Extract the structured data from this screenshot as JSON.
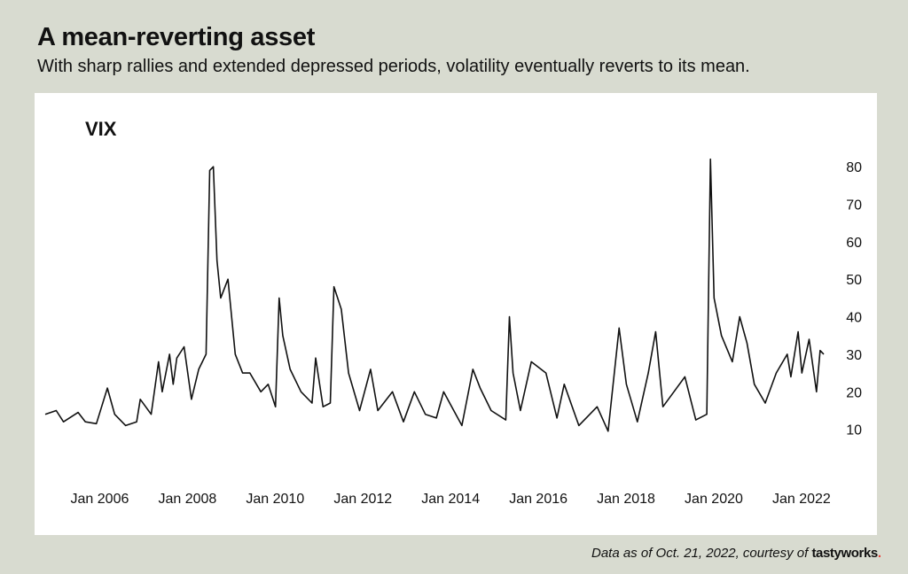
{
  "header": {
    "title": "A mean-reverting asset",
    "subtitle": "With sharp rallies and extended depressed periods, volatility eventually reverts to its mean."
  },
  "footer": {
    "prefix": "Data as of Oct. 21, 2022, courtesy of ",
    "brand_bold": "tastyworks",
    "brand_dot": "."
  },
  "colors": {
    "background": "#d8dbd0",
    "panel": "#ffffff",
    "line": "#111111",
    "brand_dot": "#e8433c"
  },
  "chart_data": {
    "type": "line",
    "title": "VIX",
    "xlabel": "",
    "ylabel": "",
    "y_axis_side": "right",
    "grid": false,
    "ylim": [
      0,
      85
    ],
    "xlim": [
      "2005-01",
      "2022-10"
    ],
    "yticks": [
      10,
      20,
      30,
      40,
      50,
      60,
      70,
      80
    ],
    "xticks": [
      {
        "x": "2006-01",
        "label": "Jan 2006"
      },
      {
        "x": "2008-01",
        "label": "Jan 2008"
      },
      {
        "x": "2010-01",
        "label": "Jan 2010"
      },
      {
        "x": "2012-01",
        "label": "Jan 2012"
      },
      {
        "x": "2014-01",
        "label": "Jan 2014"
      },
      {
        "x": "2016-01",
        "label": "Jan 2016"
      },
      {
        "x": "2018-01",
        "label": "Jan 2018"
      },
      {
        "x": "2020-01",
        "label": "Jan 2020"
      },
      {
        "x": "2022-01",
        "label": "Jan 2022"
      }
    ],
    "series": [
      {
        "points": [
          [
            "2005-01",
            14.0
          ],
          [
            "2005-04",
            15.0
          ],
          [
            "2005-06",
            12.0
          ],
          [
            "2005-10",
            14.5
          ],
          [
            "2005-12",
            12.0
          ],
          [
            "2006-03",
            11.5
          ],
          [
            "2006-06",
            21.0
          ],
          [
            "2006-08",
            14.0
          ],
          [
            "2006-11",
            11.0
          ],
          [
            "2007-02",
            12.0
          ],
          [
            "2007-03",
            18.0
          ],
          [
            "2007-06",
            14.0
          ],
          [
            "2007-08",
            28.0
          ],
          [
            "2007-09",
            20.0
          ],
          [
            "2007-11",
            30.0
          ],
          [
            "2007-12",
            22.0
          ],
          [
            "2008-01",
            29.0
          ],
          [
            "2008-03",
            32.0
          ],
          [
            "2008-05",
            18.0
          ],
          [
            "2008-07",
            26.0
          ],
          [
            "2008-09",
            30.0
          ],
          [
            "2008-10",
            79.0
          ],
          [
            "2008-11",
            80.0
          ],
          [
            "2008-12",
            55.0
          ],
          [
            "2009-01",
            45.0
          ],
          [
            "2009-03",
            50.0
          ],
          [
            "2009-05",
            30.0
          ],
          [
            "2009-07",
            25.0
          ],
          [
            "2009-09",
            25.0
          ],
          [
            "2009-12",
            20.0
          ],
          [
            "2010-02",
            22.0
          ],
          [
            "2010-04",
            16.0
          ],
          [
            "2010-05",
            45.0
          ],
          [
            "2010-06",
            35.0
          ],
          [
            "2010-08",
            26.0
          ],
          [
            "2010-11",
            20.0
          ],
          [
            "2011-02",
            17.0
          ],
          [
            "2011-03",
            29.0
          ],
          [
            "2011-05",
            16.0
          ],
          [
            "2011-07",
            17.0
          ],
          [
            "2011-08",
            48.0
          ],
          [
            "2011-10",
            42.0
          ],
          [
            "2011-12",
            25.0
          ],
          [
            "2012-03",
            15.0
          ],
          [
            "2012-06",
            26.0
          ],
          [
            "2012-08",
            15.0
          ],
          [
            "2012-12",
            20.0
          ],
          [
            "2013-03",
            12.0
          ],
          [
            "2013-06",
            20.0
          ],
          [
            "2013-09",
            14.0
          ],
          [
            "2013-12",
            13.0
          ],
          [
            "2014-02",
            20.0
          ],
          [
            "2014-07",
            11.0
          ],
          [
            "2014-10",
            26.0
          ],
          [
            "2014-12",
            21.0
          ],
          [
            "2015-03",
            15.0
          ],
          [
            "2015-07",
            12.5
          ],
          [
            "2015-08",
            40.0
          ],
          [
            "2015-09",
            25.0
          ],
          [
            "2015-11",
            15.0
          ],
          [
            "2016-02",
            28.0
          ],
          [
            "2016-06",
            25.0
          ],
          [
            "2016-09",
            13.0
          ],
          [
            "2016-11",
            22.0
          ],
          [
            "2017-03",
            11.0
          ],
          [
            "2017-08",
            16.0
          ],
          [
            "2017-11",
            9.5
          ],
          [
            "2018-02",
            37.0
          ],
          [
            "2018-04",
            22.0
          ],
          [
            "2018-07",
            12.0
          ],
          [
            "2018-10",
            25.0
          ],
          [
            "2018-12",
            36.0
          ],
          [
            "2019-02",
            16.0
          ],
          [
            "2019-05",
            20.0
          ],
          [
            "2019-08",
            24.0
          ],
          [
            "2019-11",
            12.5
          ],
          [
            "2020-02",
            14.0
          ],
          [
            "2020-03",
            82.0
          ],
          [
            "2020-04",
            45.0
          ],
          [
            "2020-06",
            35.0
          ],
          [
            "2020-09",
            28.0
          ],
          [
            "2020-11",
            40.0
          ],
          [
            "2021-01",
            33.0
          ],
          [
            "2021-03",
            22.0
          ],
          [
            "2021-06",
            17.0
          ],
          [
            "2021-09",
            25.0
          ],
          [
            "2021-12",
            30.0
          ],
          [
            "2022-01",
            24.0
          ],
          [
            "2022-03",
            36.0
          ],
          [
            "2022-04",
            25.0
          ],
          [
            "2022-06",
            34.0
          ],
          [
            "2022-08",
            20.0
          ],
          [
            "2022-09",
            31.0
          ],
          [
            "2022-10",
            30.0
          ]
        ]
      }
    ]
  }
}
